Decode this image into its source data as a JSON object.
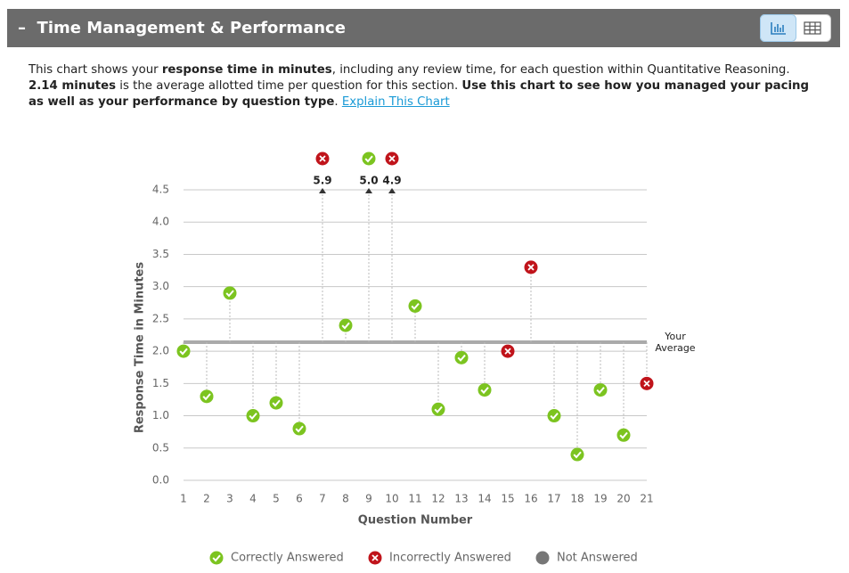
{
  "header": {
    "title": "Time Management & Performance"
  },
  "description": [
    {
      "text": "This chart shows your ",
      "bold": false
    },
    {
      "text": "response time in minutes",
      "bold": true
    },
    {
      "text": ", including any review time, for each question within Quantitative Reasoning. ",
      "bold": false
    },
    {
      "text": "2.14 minutes",
      "bold": true
    },
    {
      "text": " is the average allotted time per question for this section. ",
      "bold": false
    },
    {
      "text": "Use this chart to see how you managed your pacing as well as your performance by question type",
      "bold": true
    },
    {
      "text": ". ",
      "bold": false
    }
  ],
  "link": "Explain This Chart",
  "chart_data": {
    "type": "lollipop",
    "x_label": "Question Number",
    "y_label": "Response Time in Minutes",
    "categories": [
      "1",
      "2",
      "3",
      "4",
      "5",
      "6",
      "7",
      "8",
      "9",
      "10",
      "11",
      "12",
      "13",
      "14",
      "15",
      "16",
      "17",
      "18",
      "19",
      "20",
      "21"
    ],
    "series": [
      {
        "name": "Correctly Answered",
        "color": "#7cc420",
        "marker": "check",
        "values": [
          2.0,
          1.3,
          2.9,
          1.0,
          1.2,
          0.8,
          null,
          2.4,
          5.0,
          null,
          2.7,
          1.1,
          1.9,
          1.4,
          null,
          null,
          1.0,
          0.4,
          1.4,
          0.7,
          null
        ],
        "value_labels": [
          null,
          null,
          null,
          null,
          null,
          null,
          null,
          null,
          "5.0",
          null,
          null,
          null,
          null,
          null,
          null,
          null,
          null,
          null,
          null,
          null,
          null
        ]
      },
      {
        "name": "Incorrectly Answered",
        "color": "#c0141b",
        "marker": "cross",
        "values": [
          null,
          null,
          null,
          null,
          null,
          null,
          5.9,
          null,
          null,
          4.9,
          null,
          null,
          null,
          null,
          2.0,
          3.3,
          null,
          null,
          null,
          null,
          1.5
        ],
        "value_labels": [
          null,
          null,
          null,
          null,
          null,
          null,
          "5.9",
          null,
          null,
          "4.9",
          null,
          null,
          null,
          null,
          null,
          null,
          null,
          null,
          null,
          null,
          null
        ]
      },
      {
        "name": "Not Answered",
        "color": "#777777",
        "marker": "dot",
        "values": [
          null,
          null,
          null,
          null,
          null,
          null,
          null,
          null,
          null,
          null,
          null,
          null,
          null,
          null,
          null,
          null,
          null,
          null,
          null,
          null,
          null
        ]
      }
    ],
    "average": 2.14,
    "average_label": [
      "Your",
      "Average"
    ],
    "ylim": [
      0,
      4.5
    ],
    "yticks": [
      {
        "value": 0,
        "label": "0.0"
      },
      0.5,
      {
        "value": 1,
        "label": "1.0"
      },
      1.5,
      {
        "value": 2,
        "label": "2.0"
      },
      2.5,
      {
        "value": 3,
        "label": "3.0"
      },
      3.5,
      {
        "value": 4,
        "label": "4.0"
      },
      4.5
    ],
    "grid": true
  }
}
